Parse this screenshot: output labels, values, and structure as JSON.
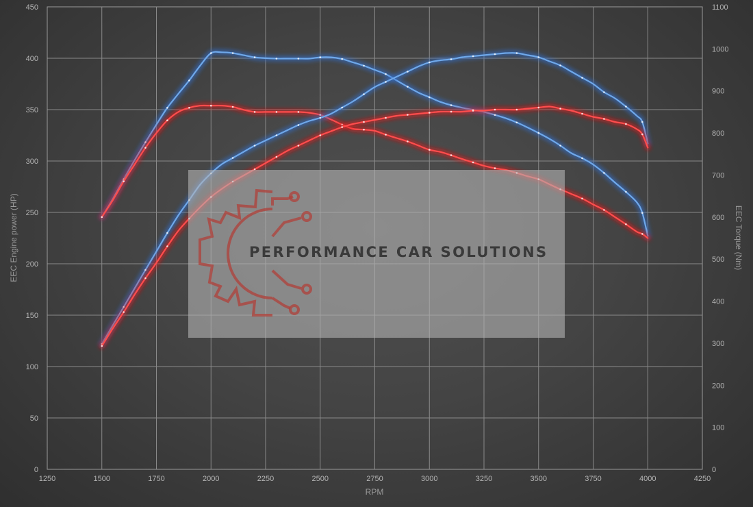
{
  "chart_data": {
    "type": "line",
    "xlabel": "RPM",
    "ylabel_left": "EEC Engine power (HP)",
    "ylabel_right": "EEC Torque (Nm)",
    "xlim": [
      1250,
      4250
    ],
    "ylim_left": [
      0,
      450
    ],
    "ylim_right": [
      0,
      1100
    ],
    "x_ticks": [
      1250,
      1500,
      1750,
      2000,
      2250,
      2500,
      2750,
      3000,
      3250,
      3500,
      3750,
      4000,
      4250
    ],
    "y_left_ticks": [
      0,
      50,
      100,
      150,
      200,
      250,
      300,
      350,
      400,
      450
    ],
    "y_right_ticks": [
      0,
      100,
      200,
      300,
      400,
      500,
      600,
      700,
      800,
      900,
      1000,
      1100
    ],
    "grid": true,
    "colors": {
      "blue": "#6fa8ea",
      "red": "#ff4d4d",
      "blue_glow": "#2e6fd0",
      "red_glow": "#e01818"
    },
    "series": [
      {
        "color": "blue",
        "axis": "right",
        "x": [
          1500,
          1550,
          1600,
          1650,
          1700,
          1750,
          1800,
          1850,
          1900,
          1950,
          2000,
          2050,
          2100,
          2150,
          2200,
          2250,
          2300,
          2350,
          2400,
          2450,
          2500,
          2550,
          2600,
          2650,
          2700,
          2750,
          2800,
          2850,
          2900,
          2950,
          3000,
          3050,
          3100,
          3150,
          3200,
          3250,
          3300,
          3350,
          3400,
          3450,
          3500,
          3550,
          3600,
          3650,
          3700,
          3750,
          3800,
          3850,
          3900,
          3950,
          3975,
          4000
        ],
        "y": [
          600,
          643,
          690,
          735,
          778,
          820,
          860,
          893,
          925,
          960,
          990,
          992,
          990,
          985,
          980,
          978,
          977,
          977,
          977,
          977,
          980,
          980,
          976,
          968,
          960,
          950,
          940,
          925,
          910,
          896,
          885,
          874,
          866,
          860,
          855,
          850,
          843,
          835,
          825,
          813,
          800,
          786,
          770,
          752,
          740,
          725,
          705,
          682,
          660,
          635,
          610,
          555
        ]
      },
      {
        "color": "red",
        "axis": "right",
        "x": [
          1500,
          1550,
          1600,
          1650,
          1700,
          1750,
          1800,
          1850,
          1900,
          1950,
          2000,
          2050,
          2100,
          2150,
          2200,
          2250,
          2300,
          2350,
          2400,
          2450,
          2500,
          2550,
          2600,
          2650,
          2700,
          2750,
          2800,
          2850,
          2900,
          2950,
          3000,
          3050,
          3100,
          3150,
          3200,
          3250,
          3300,
          3350,
          3400,
          3450,
          3500,
          3550,
          3600,
          3650,
          3700,
          3750,
          3800,
          3850,
          3900,
          3950,
          3975,
          4000
        ],
        "y": [
          600,
          640,
          685,
          725,
          765,
          800,
          830,
          850,
          860,
          865,
          865,
          865,
          862,
          855,
          850,
          850,
          850,
          850,
          850,
          848,
          843,
          832,
          820,
          810,
          808,
          805,
          796,
          788,
          780,
          770,
          760,
          755,
          747,
          738,
          730,
          722,
          716,
          712,
          705,
          697,
          690,
          678,
          666,
          655,
          644,
          630,
          617,
          600,
          583,
          565,
          560,
          550
        ]
      },
      {
        "color": "blue",
        "axis": "left",
        "x": [
          1500,
          1550,
          1600,
          1650,
          1700,
          1750,
          1800,
          1850,
          1900,
          1950,
          2000,
          2050,
          2100,
          2150,
          2200,
          2250,
          2300,
          2350,
          2400,
          2450,
          2500,
          2550,
          2600,
          2650,
          2700,
          2750,
          2800,
          2850,
          2900,
          2950,
          3000,
          3050,
          3100,
          3150,
          3200,
          3250,
          3300,
          3350,
          3400,
          3450,
          3500,
          3550,
          3600,
          3650,
          3700,
          3750,
          3800,
          3850,
          3900,
          3950,
          3975,
          4000
        ],
        "y": [
          122,
          140,
          158,
          176,
          194,
          212,
          230,
          247,
          262,
          277,
          288,
          297,
          303,
          309,
          315,
          320,
          325,
          330,
          335,
          339,
          342,
          346,
          352,
          358,
          365,
          372,
          377,
          382,
          387,
          392,
          396,
          398,
          399,
          401,
          402,
          403,
          404,
          405,
          405,
          403,
          401,
          397,
          393,
          387,
          381,
          375,
          367,
          361,
          353,
          344,
          338,
          317
        ]
      },
      {
        "color": "red",
        "axis": "left",
        "x": [
          1500,
          1550,
          1600,
          1650,
          1700,
          1750,
          1800,
          1850,
          1900,
          1950,
          2000,
          2050,
          2100,
          2150,
          2200,
          2250,
          2300,
          2350,
          2400,
          2450,
          2500,
          2550,
          2600,
          2650,
          2700,
          2750,
          2800,
          2850,
          2900,
          2950,
          3000,
          3050,
          3100,
          3150,
          3200,
          3250,
          3300,
          3350,
          3400,
          3450,
          3500,
          3550,
          3600,
          3650,
          3700,
          3750,
          3800,
          3850,
          3900,
          3950,
          3975,
          4000
        ],
        "y": [
          120,
          137,
          153,
          170,
          186,
          201,
          217,
          232,
          244,
          255,
          265,
          273,
          280,
          286,
          292,
          298,
          304,
          310,
          315,
          320,
          325,
          329,
          333,
          336,
          338,
          340,
          342,
          344,
          345,
          346,
          347,
          348,
          348,
          348,
          349,
          349,
          350,
          350,
          350,
          351,
          352,
          353,
          351,
          349,
          346,
          343,
          341,
          338,
          336,
          331,
          326,
          313
        ]
      }
    ]
  },
  "watermark": {
    "text": "PERFORMANCE CAR SOLUTIONS",
    "logo": "gear-circuit-logo"
  }
}
